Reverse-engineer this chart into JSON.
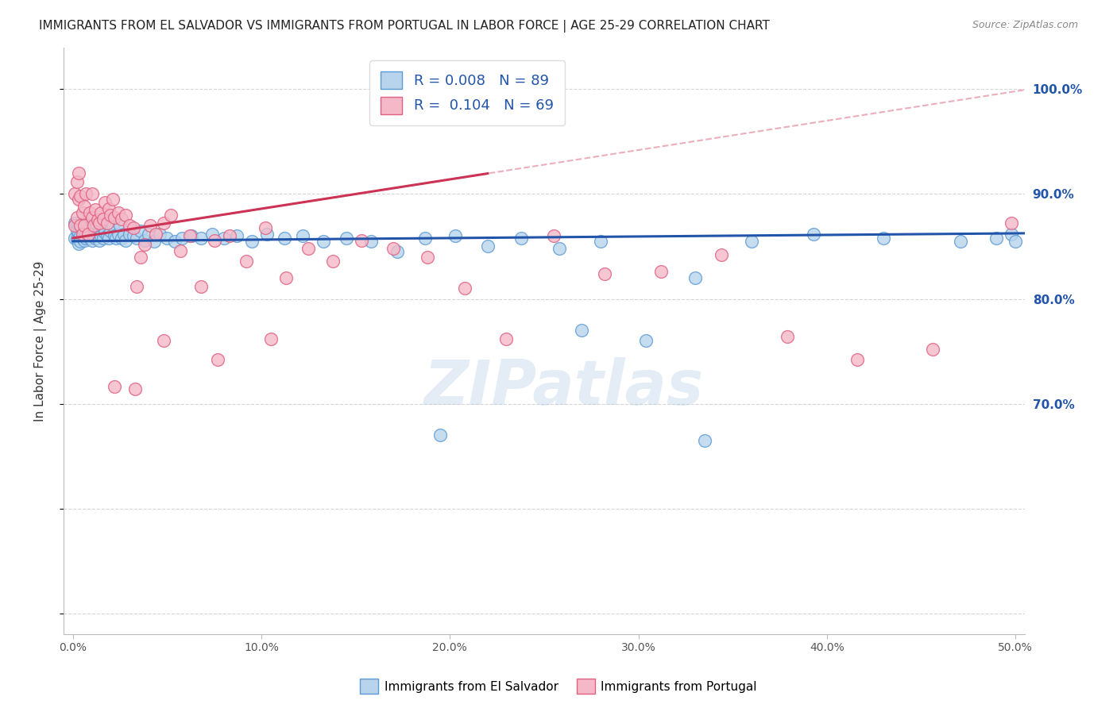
{
  "title": "IMMIGRANTS FROM EL SALVADOR VS IMMIGRANTS FROM PORTUGAL IN LABOR FORCE | AGE 25-29 CORRELATION CHART",
  "source": "Source: ZipAtlas.com",
  "ylabel": "In Labor Force | Age 25-29",
  "xlim": [
    -0.005,
    0.505
  ],
  "ylim": [
    0.48,
    1.04
  ],
  "xtick_positions": [
    0.0,
    0.1,
    0.2,
    0.3,
    0.4,
    0.5
  ],
  "xticklabels": [
    "0.0%",
    "10.0%",
    "20.0%",
    "30.0%",
    "40.0%",
    "50.0%"
  ],
  "right_ytick_positions": [
    0.7,
    0.8,
    0.9,
    1.0
  ],
  "right_yticklabels": [
    "70.0%",
    "80.0%",
    "90.0%",
    "100.0%"
  ],
  "blue_fill": "#b8d4ec",
  "blue_edge": "#5b9bd5",
  "pink_fill": "#f4b8c8",
  "pink_edge": "#e06080",
  "blue_line_color": "#2255aa",
  "pink_solid_color": "#cc3355",
  "pink_dash_color": "#e8a0b0",
  "grid_color": "#cccccc",
  "R_blue": 0.008,
  "N_blue": 89,
  "R_pink": 0.104,
  "N_pink": 69,
  "legend_label_blue": "Immigrants from El Salvador",
  "legend_label_pink": "Immigrants from Portugal",
  "watermark": "ZIPatlas",
  "blue_scatter_x": [
    0.001,
    0.001,
    0.002,
    0.002,
    0.002,
    0.003,
    0.003,
    0.003,
    0.004,
    0.004,
    0.004,
    0.005,
    0.005,
    0.005,
    0.006,
    0.006,
    0.006,
    0.007,
    0.007,
    0.008,
    0.008,
    0.009,
    0.009,
    0.01,
    0.01,
    0.011,
    0.011,
    0.012,
    0.012,
    0.013,
    0.014,
    0.014,
    0.015,
    0.015,
    0.016,
    0.017,
    0.018,
    0.019,
    0.02,
    0.021,
    0.022,
    0.023,
    0.024,
    0.025,
    0.026,
    0.027,
    0.028,
    0.03,
    0.032,
    0.034,
    0.036,
    0.038,
    0.04,
    0.043,
    0.046,
    0.05,
    0.054,
    0.058,
    0.063,
    0.068,
    0.074,
    0.08,
    0.087,
    0.095,
    0.103,
    0.112,
    0.122,
    0.133,
    0.145,
    0.158,
    0.172,
    0.187,
    0.203,
    0.22,
    0.238,
    0.258,
    0.28,
    0.304,
    0.33,
    0.36,
    0.393,
    0.43,
    0.471,
    0.49,
    0.498,
    0.5,
    0.335,
    0.27,
    0.195
  ],
  "blue_scatter_y": [
    0.858,
    0.872,
    0.857,
    0.87,
    0.865,
    0.853,
    0.863,
    0.87,
    0.86,
    0.87,
    0.855,
    0.862,
    0.87,
    0.858,
    0.856,
    0.865,
    0.87,
    0.858,
    0.863,
    0.86,
    0.868,
    0.858,
    0.865,
    0.856,
    0.87,
    0.86,
    0.865,
    0.858,
    0.872,
    0.862,
    0.856,
    0.865,
    0.86,
    0.87,
    0.858,
    0.863,
    0.86,
    0.858,
    0.865,
    0.87,
    0.86,
    0.858,
    0.862,
    0.87,
    0.858,
    0.862,
    0.856,
    0.862,
    0.86,
    0.858,
    0.865,
    0.856,
    0.862,
    0.855,
    0.862,
    0.858,
    0.855,
    0.858,
    0.86,
    0.858,
    0.862,
    0.858,
    0.86,
    0.855,
    0.862,
    0.858,
    0.86,
    0.855,
    0.858,
    0.855,
    0.845,
    0.858,
    0.86,
    0.85,
    0.858,
    0.848,
    0.855,
    0.76,
    0.82,
    0.855,
    0.862,
    0.858,
    0.855,
    0.858,
    0.862,
    0.855,
    0.665,
    0.77,
    0.67
  ],
  "pink_scatter_x": [
    0.001,
    0.001,
    0.002,
    0.002,
    0.003,
    0.003,
    0.004,
    0.004,
    0.005,
    0.005,
    0.006,
    0.006,
    0.007,
    0.008,
    0.009,
    0.01,
    0.01,
    0.011,
    0.012,
    0.013,
    0.014,
    0.015,
    0.016,
    0.017,
    0.018,
    0.019,
    0.02,
    0.021,
    0.022,
    0.024,
    0.026,
    0.028,
    0.03,
    0.032,
    0.034,
    0.036,
    0.038,
    0.041,
    0.044,
    0.048,
    0.052,
    0.057,
    0.062,
    0.068,
    0.075,
    0.083,
    0.092,
    0.102,
    0.113,
    0.125,
    0.138,
    0.153,
    0.17,
    0.188,
    0.208,
    0.23,
    0.255,
    0.282,
    0.312,
    0.344,
    0.379,
    0.416,
    0.456,
    0.498,
    0.105,
    0.048,
    0.077,
    0.033,
    0.022
  ],
  "pink_scatter_y": [
    0.87,
    0.9,
    0.878,
    0.912,
    0.895,
    0.92,
    0.87,
    0.898,
    0.862,
    0.882,
    0.87,
    0.888,
    0.9,
    0.862,
    0.882,
    0.9,
    0.878,
    0.87,
    0.885,
    0.875,
    0.872,
    0.882,
    0.876,
    0.892,
    0.872,
    0.886,
    0.88,
    0.895,
    0.878,
    0.882,
    0.876,
    0.88,
    0.87,
    0.868,
    0.812,
    0.84,
    0.852,
    0.87,
    0.862,
    0.872,
    0.88,
    0.846,
    0.86,
    0.812,
    0.856,
    0.86,
    0.836,
    0.868,
    0.82,
    0.848,
    0.836,
    0.856,
    0.848,
    0.84,
    0.81,
    0.762,
    0.86,
    0.824,
    0.826,
    0.842,
    0.764,
    0.742,
    0.752,
    0.872,
    0.762,
    0.76,
    0.742,
    0.714,
    0.716
  ],
  "blue_trend_slope": 0.015,
  "blue_trend_intercept": 0.855,
  "pink_trend_slope": 0.28,
  "pink_trend_intercept": 0.858
}
